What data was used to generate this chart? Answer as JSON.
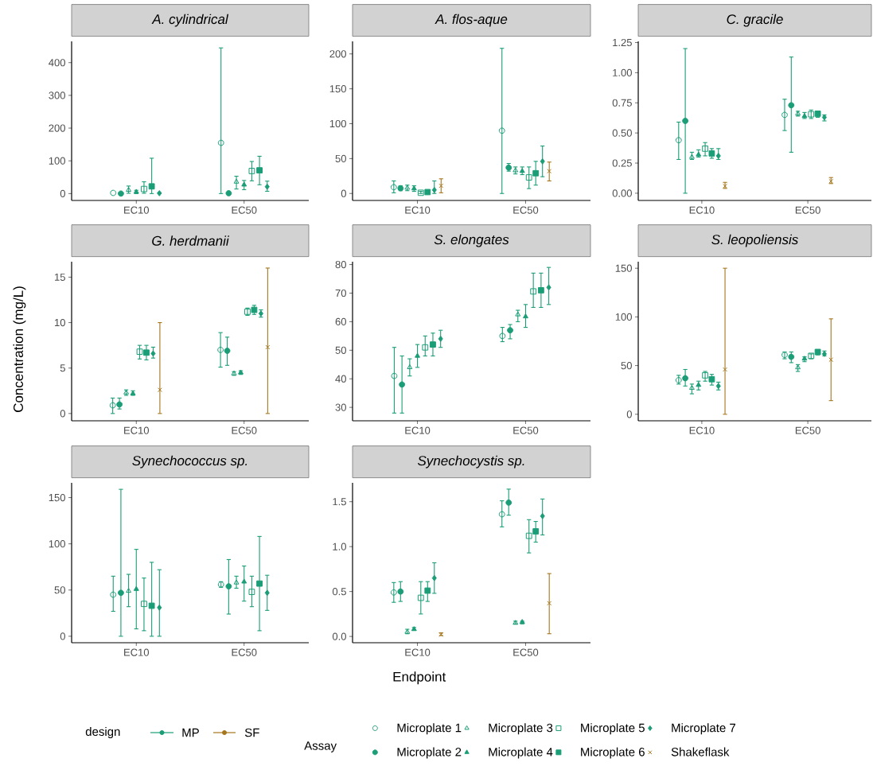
{
  "chart_data": [
    {
      "type": "scatter",
      "title": "A. cylindrical",
      "categories": [
        "EC10",
        "EC50"
      ],
      "ylim": [
        -21,
        465
      ],
      "yticks": [
        0,
        100,
        200,
        300,
        400
      ],
      "series": [
        {
          "color": "#1b9e77",
          "marker": "circle",
          "values": [
            2,
            155
          ],
          "errors": [
            null,
            [
              0,
              445
            ]
          ]
        },
        {
          "color": "#1b9e77",
          "marker": "circle",
          "values": [
            0,
            1
          ],
          "errors": [
            [
              0,
              2
            ],
            [
              0,
              3
            ]
          ]
        },
        {
          "color": "#1b9e77",
          "marker": "triangle",
          "values": [
            11,
            36
          ],
          "errors": [
            [
              1,
              23
            ],
            [
              14,
              53
            ]
          ]
        },
        {
          "color": "#1b9e77",
          "marker": "triangle",
          "values": [
            5,
            27
          ],
          "errors": [
            [
              0,
              10
            ],
            [
              12,
              40
            ]
          ]
        },
        {
          "color": "#1b9e77",
          "marker": "square",
          "values": [
            14,
            69
          ],
          "errors": [
            [
              1,
              36
            ],
            [
              39,
              98
            ]
          ]
        },
        {
          "color": "#1b9e77",
          "marker": "square",
          "values": [
            22,
            71
          ],
          "errors": [
            [
              0,
              108
            ],
            [
              27,
              114
            ]
          ]
        },
        {
          "color": "#1b9e77",
          "marker": "diamond",
          "values": [
            1,
            21
          ],
          "errors": [
            [
              0,
              3
            ],
            [
              7,
              38
            ]
          ]
        }
      ]
    },
    {
      "type": "scatter",
      "title": "A. flos-aque",
      "categories": [
        "EC10",
        "EC50"
      ],
      "ylim": [
        -10,
        218
      ],
      "yticks": [
        0,
        50,
        100,
        150,
        200
      ],
      "series": [
        {
          "color": "#1b9e77",
          "marker": "circle",
          "values": [
            9,
            90
          ],
          "errors": [
            [
              1,
              18
            ],
            [
              0,
              208
            ]
          ]
        },
        {
          "color": "#1b9e77",
          "marker": "circle",
          "values": [
            7.5,
            37
          ],
          "errors": [
            [
              4,
              11
            ],
            [
              32,
              43
            ]
          ]
        },
        {
          "color": "#1b9e77",
          "marker": "triangle",
          "values": [
            8,
            33
          ],
          "errors": [
            [
              4,
              12
            ],
            [
              28,
              38
            ]
          ]
        },
        {
          "color": "#1b9e77",
          "marker": "triangle",
          "values": [
            7,
            32
          ],
          "errors": [
            [
              3,
              11
            ],
            [
              27,
              38
            ]
          ]
        },
        {
          "color": "#1b9e77",
          "marker": "square",
          "values": [
            1,
            23
          ],
          "errors": [
            [
              0,
              3
            ],
            [
              7,
              38
            ]
          ]
        },
        {
          "color": "#1b9e77",
          "marker": "square",
          "values": [
            2,
            29
          ],
          "errors": [
            [
              0,
              3
            ],
            [
              12,
              46
            ]
          ]
        },
        {
          "color": "#1b9e77",
          "marker": "diamond",
          "values": [
            5,
            46
          ],
          "errors": [
            [
              0,
              18
            ],
            [
              24,
              68
            ]
          ]
        },
        {
          "color": "#a6761d",
          "marker": "cross",
          "values": [
            11,
            32
          ],
          "errors": [
            [
              1,
              21
            ],
            [
              18,
              45
            ]
          ]
        }
      ]
    },
    {
      "type": "scatter",
      "title": "C. gracile",
      "categories": [
        "EC10",
        "EC50"
      ],
      "ylim": [
        -0.06,
        1.26
      ],
      "yticks": [
        {
          "value": 0,
          "label": "0.00"
        },
        {
          "value": 0.25,
          "label": "0.25"
        },
        {
          "value": 0.5,
          "label": "0.50"
        },
        {
          "value": 0.75,
          "label": "0.75"
        },
        {
          "value": 1,
          "label": "1.00"
        },
        {
          "value": 1.25,
          "label": "1.25"
        }
      ],
      "series": [
        {
          "color": "#1b9e77",
          "marker": "circle",
          "values": [
            0.44,
            0.65
          ],
          "errors": [
            [
              0.28,
              0.59
            ],
            [
              0.52,
              0.78
            ]
          ]
        },
        {
          "color": "#1b9e77",
          "marker": "circle",
          "values": [
            0.6,
            0.73
          ],
          "errors": [
            [
              0,
              1.2
            ],
            [
              0.34,
              1.13
            ]
          ]
        },
        {
          "color": "#1b9e77",
          "marker": "triangle",
          "values": [
            0.3,
            0.66
          ],
          "errors": [
            [
              0.28,
              0.34
            ],
            [
              0.64,
              0.68
            ]
          ]
        },
        {
          "color": "#1b9e77",
          "marker": "triangle",
          "values": [
            0.32,
            0.64
          ],
          "errors": [
            [
              0.3,
              0.36
            ],
            [
              0.62,
              0.67
            ]
          ]
        },
        {
          "color": "#1b9e77",
          "marker": "square",
          "values": [
            0.37,
            0.655
          ],
          "errors": [
            [
              0.31,
              0.42
            ],
            [
              0.62,
              0.69
            ]
          ]
        },
        {
          "color": "#1b9e77",
          "marker": "square",
          "values": [
            0.33,
            0.66
          ],
          "errors": [
            [
              0.29,
              0.37
            ],
            [
              0.63,
              0.68
            ]
          ]
        },
        {
          "color": "#1b9e77",
          "marker": "diamond",
          "values": [
            0.31,
            0.63
          ],
          "errors": [
            [
              0.28,
              0.37
            ],
            [
              0.6,
              0.65
            ]
          ]
        },
        {
          "color": "#a6761d",
          "marker": "cross",
          "values": [
            0.06,
            0.1
          ],
          "errors": [
            [
              0.04,
              0.09
            ],
            [
              0.08,
              0.13
            ]
          ]
        }
      ]
    },
    {
      "type": "scatter",
      "title": "G. herdmanii",
      "ylabel": "Concentration (mg/L)",
      "categories": [
        "EC10",
        "EC50"
      ],
      "ylim": [
        -0.8,
        16.7
      ],
      "yticks": [
        0,
        5,
        10,
        15
      ],
      "series": [
        {
          "color": "#1b9e77",
          "marker": "circle",
          "values": [
            0.9,
            7.0
          ],
          "errors": [
            [
              0,
              1.7
            ],
            [
              5.1,
              8.9
            ]
          ]
        },
        {
          "color": "#1b9e77",
          "marker": "circle",
          "values": [
            1.0,
            6.9
          ],
          "errors": [
            [
              0.5,
              1.7
            ],
            [
              5.3,
              8.4
            ]
          ]
        },
        {
          "color": "#1b9e77",
          "marker": "triangle",
          "values": [
            2.3,
            4.4
          ],
          "errors": [
            [
              2.0,
              2.6
            ],
            [
              4.2,
              4.6
            ]
          ]
        },
        {
          "color": "#1b9e77",
          "marker": "triangle",
          "values": [
            2.2,
            4.5
          ],
          "errors": [
            [
              2.0,
              2.5
            ],
            [
              4.3,
              4.7
            ]
          ]
        },
        {
          "color": "#1b9e77",
          "marker": "square",
          "values": [
            6.8,
            11.2
          ],
          "errors": [
            [
              6.0,
              7.5
            ],
            [
              10.8,
              11.6
            ]
          ]
        },
        {
          "color": "#1b9e77",
          "marker": "square",
          "values": [
            6.7,
            11.4
          ],
          "errors": [
            [
              5.9,
              7.5
            ],
            [
              10.9,
              11.9
            ]
          ]
        },
        {
          "color": "#1b9e77",
          "marker": "diamond",
          "values": [
            6.6,
            11.0
          ],
          "errors": [
            [
              6.1,
              7.3
            ],
            [
              10.6,
              11.4
            ]
          ]
        },
        {
          "color": "#a6761d",
          "marker": "cross",
          "values": [
            2.6,
            7.3
          ],
          "errors": [
            [
              0,
              10
            ],
            [
              0,
              16
            ]
          ]
        }
      ]
    },
    {
      "type": "scatter",
      "title": "S. elongates",
      "categories": [
        "EC10",
        "EC50"
      ],
      "ylim": [
        25.3,
        81
      ],
      "yticks": [
        30,
        40,
        50,
        60,
        70,
        80
      ],
      "series": [
        {
          "color": "#1b9e77",
          "marker": "circle",
          "values": [
            41,
            55
          ],
          "errors": [
            [
              28,
              51
            ],
            [
              53,
              58
            ]
          ]
        },
        {
          "color": "#1b9e77",
          "marker": "circle",
          "values": [
            38,
            57
          ],
          "errors": [
            [
              28,
              48
            ],
            [
              54,
              59
            ]
          ]
        },
        {
          "color": "#1b9e77",
          "marker": "triangle",
          "values": [
            44,
            62.5
          ],
          "errors": [
            [
              41,
              47
            ],
            [
              60,
              64
            ]
          ]
        },
        {
          "color": "#1b9e77",
          "marker": "triangle",
          "values": [
            48,
            61.8
          ],
          "errors": [
            [
              44,
              52
            ],
            [
              58,
              66
            ]
          ]
        },
        {
          "color": "#1b9e77",
          "marker": "square",
          "values": [
            51,
            70.6
          ],
          "errors": [
            [
              48,
              55
            ],
            [
              65,
              77
            ]
          ]
        },
        {
          "color": "#1b9e77",
          "marker": "square",
          "values": [
            52,
            71
          ],
          "errors": [
            [
              48,
              56
            ],
            [
              65,
              77
            ]
          ]
        },
        {
          "color": "#1b9e77",
          "marker": "diamond",
          "values": [
            54,
            72
          ],
          "errors": [
            [
              51,
              57
            ],
            [
              66,
              79
            ]
          ]
        }
      ]
    },
    {
      "type": "scatter",
      "title": "S. leopoliensis",
      "categories": [
        "EC10",
        "EC50"
      ],
      "ylim": [
        -6.7,
        156.7
      ],
      "yticks": [
        0,
        50,
        100,
        150
      ],
      "series": [
        {
          "color": "#1b9e77",
          "marker": "circle",
          "values": [
            35,
            61
          ],
          "errors": [
            [
              31,
              40
            ],
            [
              57,
              64
            ]
          ]
        },
        {
          "color": "#1b9e77",
          "marker": "circle",
          "values": [
            37,
            59
          ],
          "errors": [
            [
              29,
              46
            ],
            [
              53,
              64
            ]
          ]
        },
        {
          "color": "#1b9e77",
          "marker": "triangle",
          "values": [
            27,
            48
          ],
          "errors": [
            [
              21,
              31
            ],
            [
              44,
              51
            ]
          ]
        },
        {
          "color": "#1b9e77",
          "marker": "triangle",
          "values": [
            30,
            57
          ],
          "errors": [
            [
              25,
              34
            ],
            [
              54,
              59
            ]
          ]
        },
        {
          "color": "#1b9e77",
          "marker": "square",
          "values": [
            40,
            60
          ],
          "errors": [
            [
              34,
              44
            ],
            [
              57,
              62
            ]
          ]
        },
        {
          "color": "#1b9e77",
          "marker": "square",
          "values": [
            36,
            64
          ],
          "errors": [
            [
              30,
              41
            ],
            [
              61,
              66
            ]
          ]
        },
        {
          "color": "#1b9e77",
          "marker": "diamond",
          "values": [
            29,
            62
          ],
          "errors": [
            [
              25,
              33
            ],
            [
              60,
              65
            ]
          ]
        },
        {
          "color": "#a6761d",
          "marker": "cross",
          "values": [
            46,
            56
          ],
          "errors": [
            [
              0,
              150
            ],
            [
              14,
              98
            ]
          ]
        }
      ]
    },
    {
      "type": "scatter",
      "title": "Synechococcus sp.",
      "categories": [
        "EC10",
        "EC50"
      ],
      "ylim": [
        -7,
        166
      ],
      "yticks": [
        0,
        50,
        100,
        150
      ],
      "series": [
        {
          "color": "#1b9e77",
          "marker": "circle",
          "values": [
            45,
            56
          ],
          "errors": [
            [
              27,
              65
            ],
            [
              53,
              59
            ]
          ]
        },
        {
          "color": "#1b9e77",
          "marker": "circle",
          "values": [
            47,
            54
          ],
          "errors": [
            [
              0,
              159
            ],
            [
              24,
              83
            ]
          ]
        },
        {
          "color": "#1b9e77",
          "marker": "triangle",
          "values": [
            49,
            58
          ],
          "errors": [
            [
              32,
              67
            ],
            [
              52,
              65
            ]
          ]
        },
        {
          "color": "#1b9e77",
          "marker": "triangle",
          "values": [
            51,
            59
          ],
          "errors": [
            [
              8,
              94
            ],
            [
              38,
              76
            ]
          ]
        },
        {
          "color": "#1b9e77",
          "marker": "square",
          "values": [
            35,
            48
          ],
          "errors": [
            [
              6,
              63
            ],
            [
              32,
              65
            ]
          ]
        },
        {
          "color": "#1b9e77",
          "marker": "square",
          "values": [
            33,
            57
          ],
          "errors": [
            [
              0,
              80
            ],
            [
              6,
              108
            ]
          ]
        },
        {
          "color": "#1b9e77",
          "marker": "diamond",
          "values": [
            31,
            47
          ],
          "errors": [
            [
              0,
              72
            ],
            [
              28,
              66
            ]
          ]
        }
      ]
    },
    {
      "type": "scatter",
      "title": "Synechocystis sp.",
      "xlabel": "Endpoint",
      "categories": [
        "EC10",
        "EC50"
      ],
      "ylim": [
        -0.07,
        1.71
      ],
      "yticks": [
        {
          "value": 0,
          "label": "0.0"
        },
        {
          "value": 0.5,
          "label": "0.5"
        },
        {
          "value": 1,
          "label": "1.0"
        },
        {
          "value": 1.5,
          "label": "1.5"
        }
      ],
      "legend": "bottom",
      "legend_title": "Assay",
      "annotations": [
        "design",
        "MP",
        "SF"
      ],
      "series": [
        {
          "name": "Microplate 1",
          "color": "#1b9e77",
          "marker": "circle",
          "values": [
            0.49,
            1.36
          ],
          "errors": [
            [
              0.38,
              0.6
            ],
            [
              1.22,
              1.51
            ]
          ]
        },
        {
          "name": "Microplate 2",
          "color": "#1b9e77",
          "marker": "circle",
          "values": [
            0.5,
            1.49
          ],
          "errors": [
            [
              0.39,
              0.61
            ],
            [
              1.35,
              1.64
            ]
          ]
        },
        {
          "name": "Microplate 3",
          "color": "#1b9e77",
          "marker": "triangle",
          "values": [
            0.05,
            0.15
          ],
          "errors": [
            [
              0.03,
              0.08
            ],
            [
              0.14,
              0.17
            ]
          ]
        },
        {
          "name": "Microplate 4",
          "color": "#1b9e77",
          "marker": "triangle",
          "values": [
            0.08,
            0.16
          ],
          "errors": [
            [
              0.07,
              0.1
            ],
            [
              0.14,
              0.17
            ]
          ]
        },
        {
          "name": "Microplate 5",
          "color": "#1b9e77",
          "marker": "square",
          "values": [
            0.43,
            1.12
          ],
          "errors": [
            [
              0.25,
              0.61
            ],
            [
              0.93,
              1.3
            ]
          ]
        },
        {
          "name": "Microplate 6",
          "color": "#1b9e77",
          "marker": "square",
          "values": [
            0.51,
            1.17
          ],
          "errors": [
            [
              0.39,
              0.61
            ],
            [
              1.05,
              1.28
            ]
          ]
        },
        {
          "name": "Microplate 7",
          "color": "#1b9e77",
          "marker": "diamond",
          "values": [
            0.65,
            1.34
          ],
          "errors": [
            [
              0.48,
              0.82
            ],
            [
              1.13,
              1.53
            ]
          ]
        },
        {
          "name": "Shakeflask",
          "color": "#a6761d",
          "marker": "cross",
          "values": [
            0.02,
            0.37
          ],
          "errors": [
            [
              0.01,
              0.04
            ],
            [
              0.03,
              0.7
            ]
          ]
        }
      ]
    }
  ]
}
